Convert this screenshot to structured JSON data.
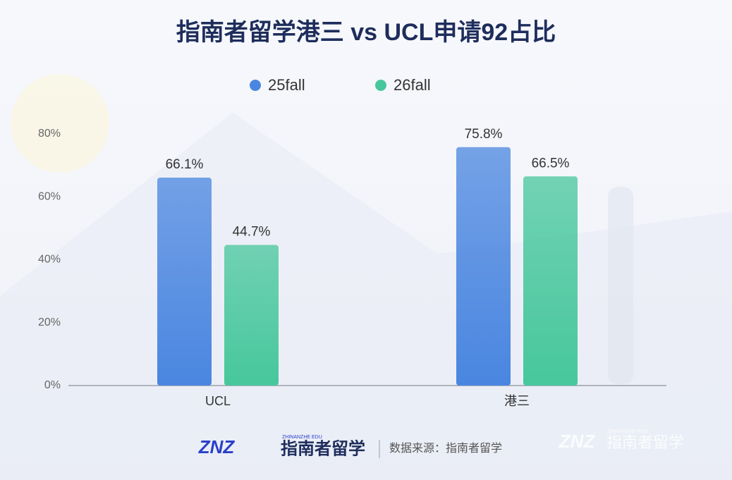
{
  "chart_data": {
    "type": "bar",
    "title": "指南者留学港三 vs UCL申请92占比",
    "categories": [
      "UCL",
      "港三"
    ],
    "series": [
      {
        "name": "25fall",
        "color": "#4a86e0",
        "values": [
          66.1,
          75.8
        ],
        "value_labels": [
          "66.1%",
          "75.8%"
        ]
      },
      {
        "name": "26fall",
        "color": "#47c79c",
        "values": [
          44.7,
          66.5
        ],
        "value_labels": [
          "44.7%",
          "66.5%"
        ]
      }
    ],
    "ylim": [
      0,
      80
    ],
    "yticks": [
      {
        "value": 0,
        "label": "0%"
      },
      {
        "value": 20,
        "label": "20%"
      },
      {
        "value": 40,
        "label": "40%"
      },
      {
        "value": 60,
        "label": "60%"
      },
      {
        "value": 80,
        "label": "80%"
      }
    ],
    "grid": false,
    "legend": "top"
  },
  "footer": {
    "logo_mark": "ZNZ",
    "logo_text": "指南者留学",
    "logo_subtext": "ZHINANZHE EDU",
    "source": "数据来源：指南者留学",
    "watermark_mark": "ZNZ",
    "watermark_text": "指南者留学",
    "watermark_subtext": "ZHINANZHE EDU"
  }
}
